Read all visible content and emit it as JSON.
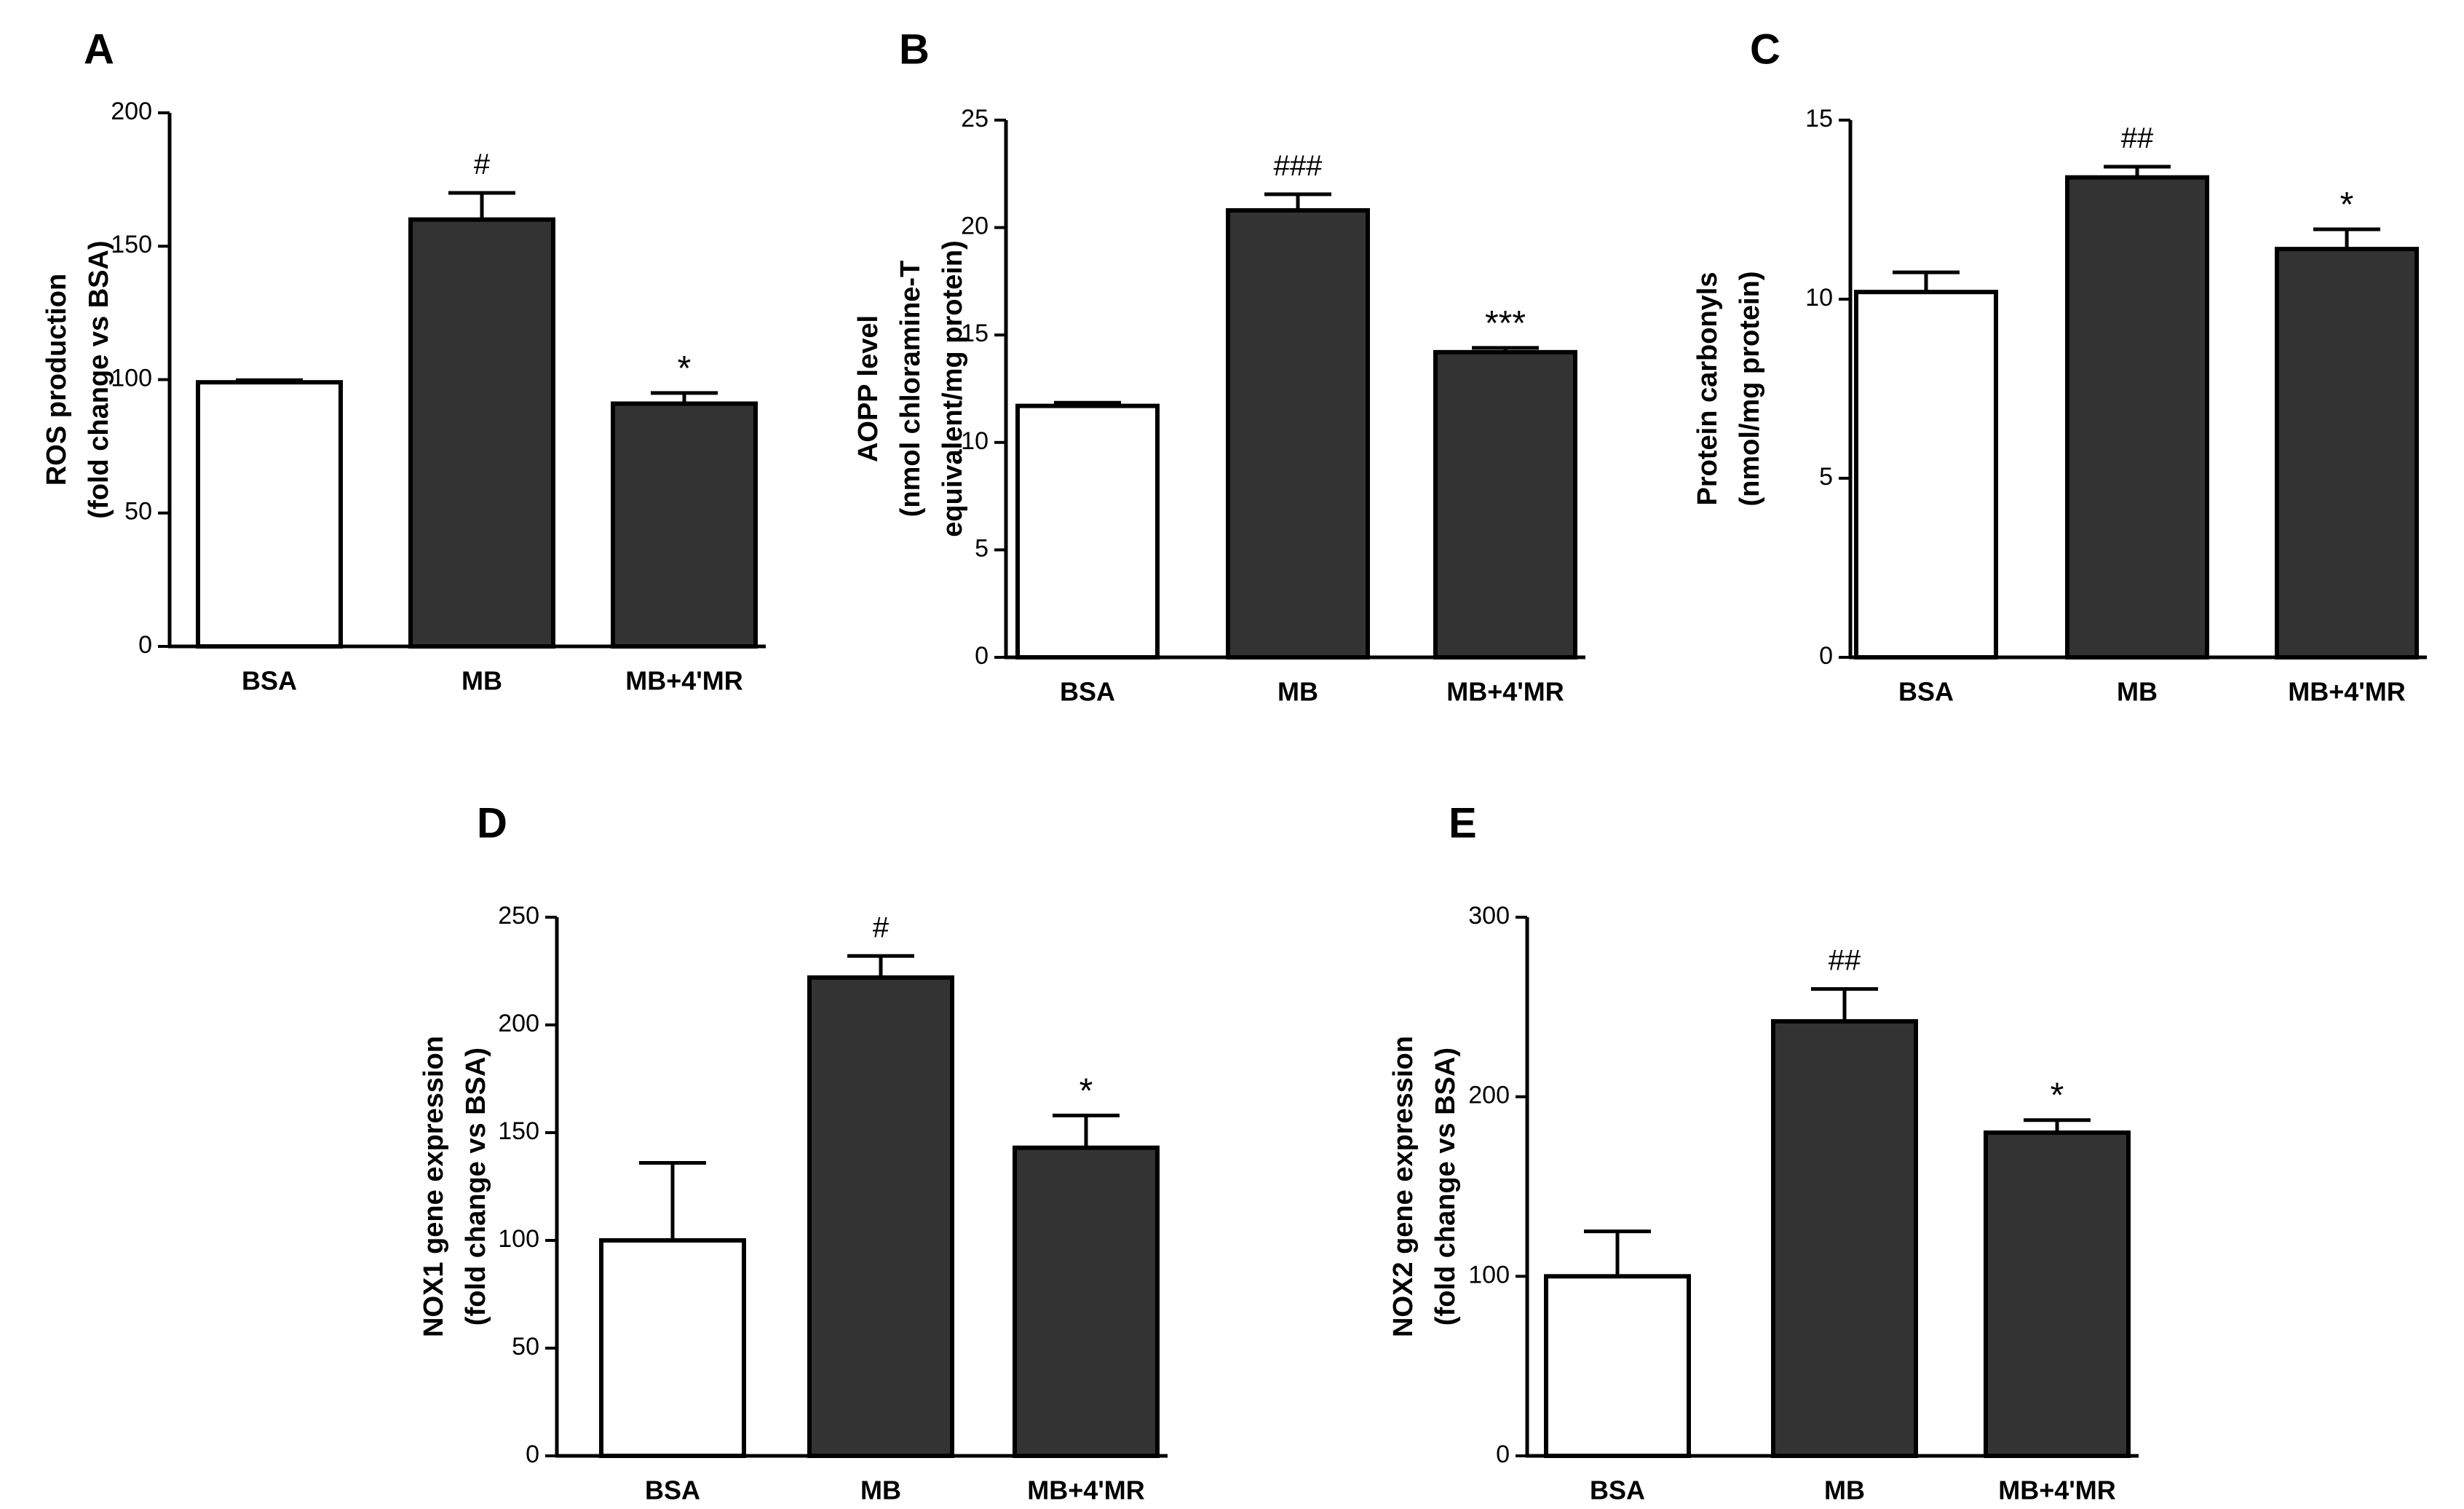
{
  "colors": {
    "axis": "#000000",
    "control_fill": "#ffffff",
    "treated_fill": "#333333"
  },
  "chart_data": [
    {
      "type": "bar",
      "panel": "A",
      "ylabel_lines": [
        "ROS production",
        "(fold change vs BSA)"
      ],
      "categories": [
        "BSA",
        "MB",
        "MB+4'MR"
      ],
      "values": [
        99,
        160,
        91
      ],
      "errors": [
        0.8,
        10,
        4
      ],
      "annotations": [
        "",
        "#",
        "*"
      ],
      "ylim": [
        0,
        200
      ],
      "yticks": [
        0,
        50,
        100,
        150,
        200
      ]
    },
    {
      "type": "bar",
      "panel": "B",
      "ylabel_lines": [
        "AOPP level",
        "(nmol chloramine-T",
        "equivalent/mg  protein)"
      ],
      "categories": [
        "BSA",
        "MB",
        "MB+4'MR"
      ],
      "values": [
        11.7,
        20.8,
        14.2
      ],
      "errors": [
        0.15,
        0.75,
        0.2
      ],
      "annotations": [
        "",
        "###",
        "***"
      ],
      "ylim": [
        0,
        25
      ],
      "yticks": [
        0,
        5,
        10,
        15,
        20,
        25
      ]
    },
    {
      "type": "bar",
      "panel": "C",
      "ylabel_lines": [
        "Protein carbonyls",
        "(nmol/mg protein)"
      ],
      "categories": [
        "BSA",
        "MB",
        "MB+4'MR"
      ],
      "values": [
        10.2,
        13.4,
        11.4
      ],
      "errors": [
        0.55,
        0.3,
        0.55
      ],
      "annotations": [
        "",
        "##",
        "*"
      ],
      "ylim": [
        0,
        15
      ],
      "yticks": [
        0,
        5,
        10,
        15
      ]
    },
    {
      "type": "bar",
      "panel": "D",
      "ylabel_lines": [
        "NOX1  gene expression",
        "(fold change vs BSA)"
      ],
      "categories": [
        "BSA",
        "MB",
        "MB+4'MR"
      ],
      "values": [
        100,
        222,
        143
      ],
      "errors": [
        36,
        10,
        15
      ],
      "annotations": [
        "",
        "#",
        "*"
      ],
      "ylim": [
        0,
        250
      ],
      "yticks": [
        0,
        50,
        100,
        150,
        200,
        250
      ]
    },
    {
      "type": "bar",
      "panel": "E",
      "ylabel_lines": [
        "NOX2  gene expression",
        "(fold change vs BSA)"
      ],
      "categories": [
        "BSA",
        "MB",
        "MB+4'MR"
      ],
      "values": [
        100,
        242,
        180
      ],
      "errors": [
        25,
        18,
        7
      ],
      "annotations": [
        "",
        "##",
        "*"
      ],
      "ylim": [
        0,
        300
      ],
      "yticks": [
        0,
        100,
        200,
        300
      ]
    }
  ]
}
